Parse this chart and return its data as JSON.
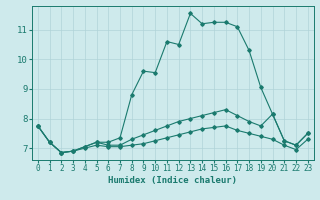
{
  "xlabel": "Humidex (Indice chaleur)",
  "background_color": "#ceeaec",
  "grid_color": "#b0d4d8",
  "line_color": "#1a7a6e",
  "xlim": [
    -0.5,
    23.5
  ],
  "ylim": [
    6.6,
    11.8
  ],
  "yticks": [
    7,
    8,
    9,
    10,
    11
  ],
  "xticks": [
    0,
    1,
    2,
    3,
    4,
    5,
    6,
    7,
    8,
    9,
    10,
    11,
    12,
    13,
    14,
    15,
    16,
    17,
    18,
    19,
    20,
    21,
    22,
    23
  ],
  "series": [
    {
      "x": [
        0,
        1,
        2,
        3,
        4,
        5,
        6,
        7,
        8,
        9,
        10,
        11,
        12,
        13,
        14,
        15,
        16,
        17,
        18,
        19,
        20,
        21,
        22,
        23
      ],
      "y": [
        7.75,
        7.2,
        6.85,
        6.9,
        7.05,
        7.2,
        7.2,
        7.35,
        8.8,
        9.6,
        9.55,
        10.6,
        10.5,
        11.55,
        11.2,
        11.25,
        11.25,
        11.1,
        10.3,
        9.05,
        8.15,
        7.25,
        7.1,
        7.5
      ]
    },
    {
      "x": [
        0,
        1,
        2,
        3,
        4,
        5,
        6,
        7,
        8,
        9,
        10,
        11,
        12,
        13,
        14,
        15,
        16,
        17,
        18,
        19,
        20,
        21,
        22,
        23
      ],
      "y": [
        7.75,
        7.2,
        6.85,
        6.9,
        7.05,
        7.2,
        7.1,
        7.1,
        7.3,
        7.45,
        7.6,
        7.75,
        7.9,
        8.0,
        8.1,
        8.2,
        8.3,
        8.1,
        7.9,
        7.75,
        8.15,
        7.25,
        7.1,
        7.5
      ]
    },
    {
      "x": [
        0,
        1,
        2,
        3,
        4,
        5,
        6,
        7,
        8,
        9,
        10,
        11,
        12,
        13,
        14,
        15,
        16,
        17,
        18,
        19,
        20,
        21,
        22,
        23
      ],
      "y": [
        7.75,
        7.2,
        6.85,
        6.9,
        7.0,
        7.1,
        7.05,
        7.05,
        7.1,
        7.15,
        7.25,
        7.35,
        7.45,
        7.55,
        7.65,
        7.7,
        7.75,
        7.6,
        7.5,
        7.4,
        7.3,
        7.1,
        6.95,
        7.3
      ]
    }
  ]
}
